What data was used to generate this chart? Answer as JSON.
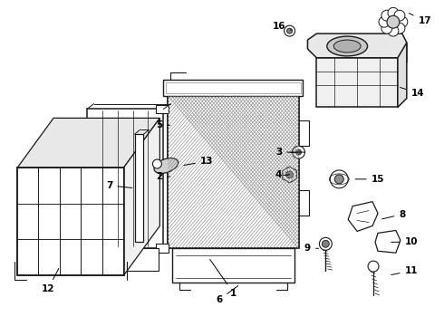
{
  "bg": "#ffffff",
  "lc": "#1a1a1a",
  "fc": "#000000",
  "fs": 7.5,
  "fig_w": 4.9,
  "fig_h": 3.6,
  "dpi": 100
}
